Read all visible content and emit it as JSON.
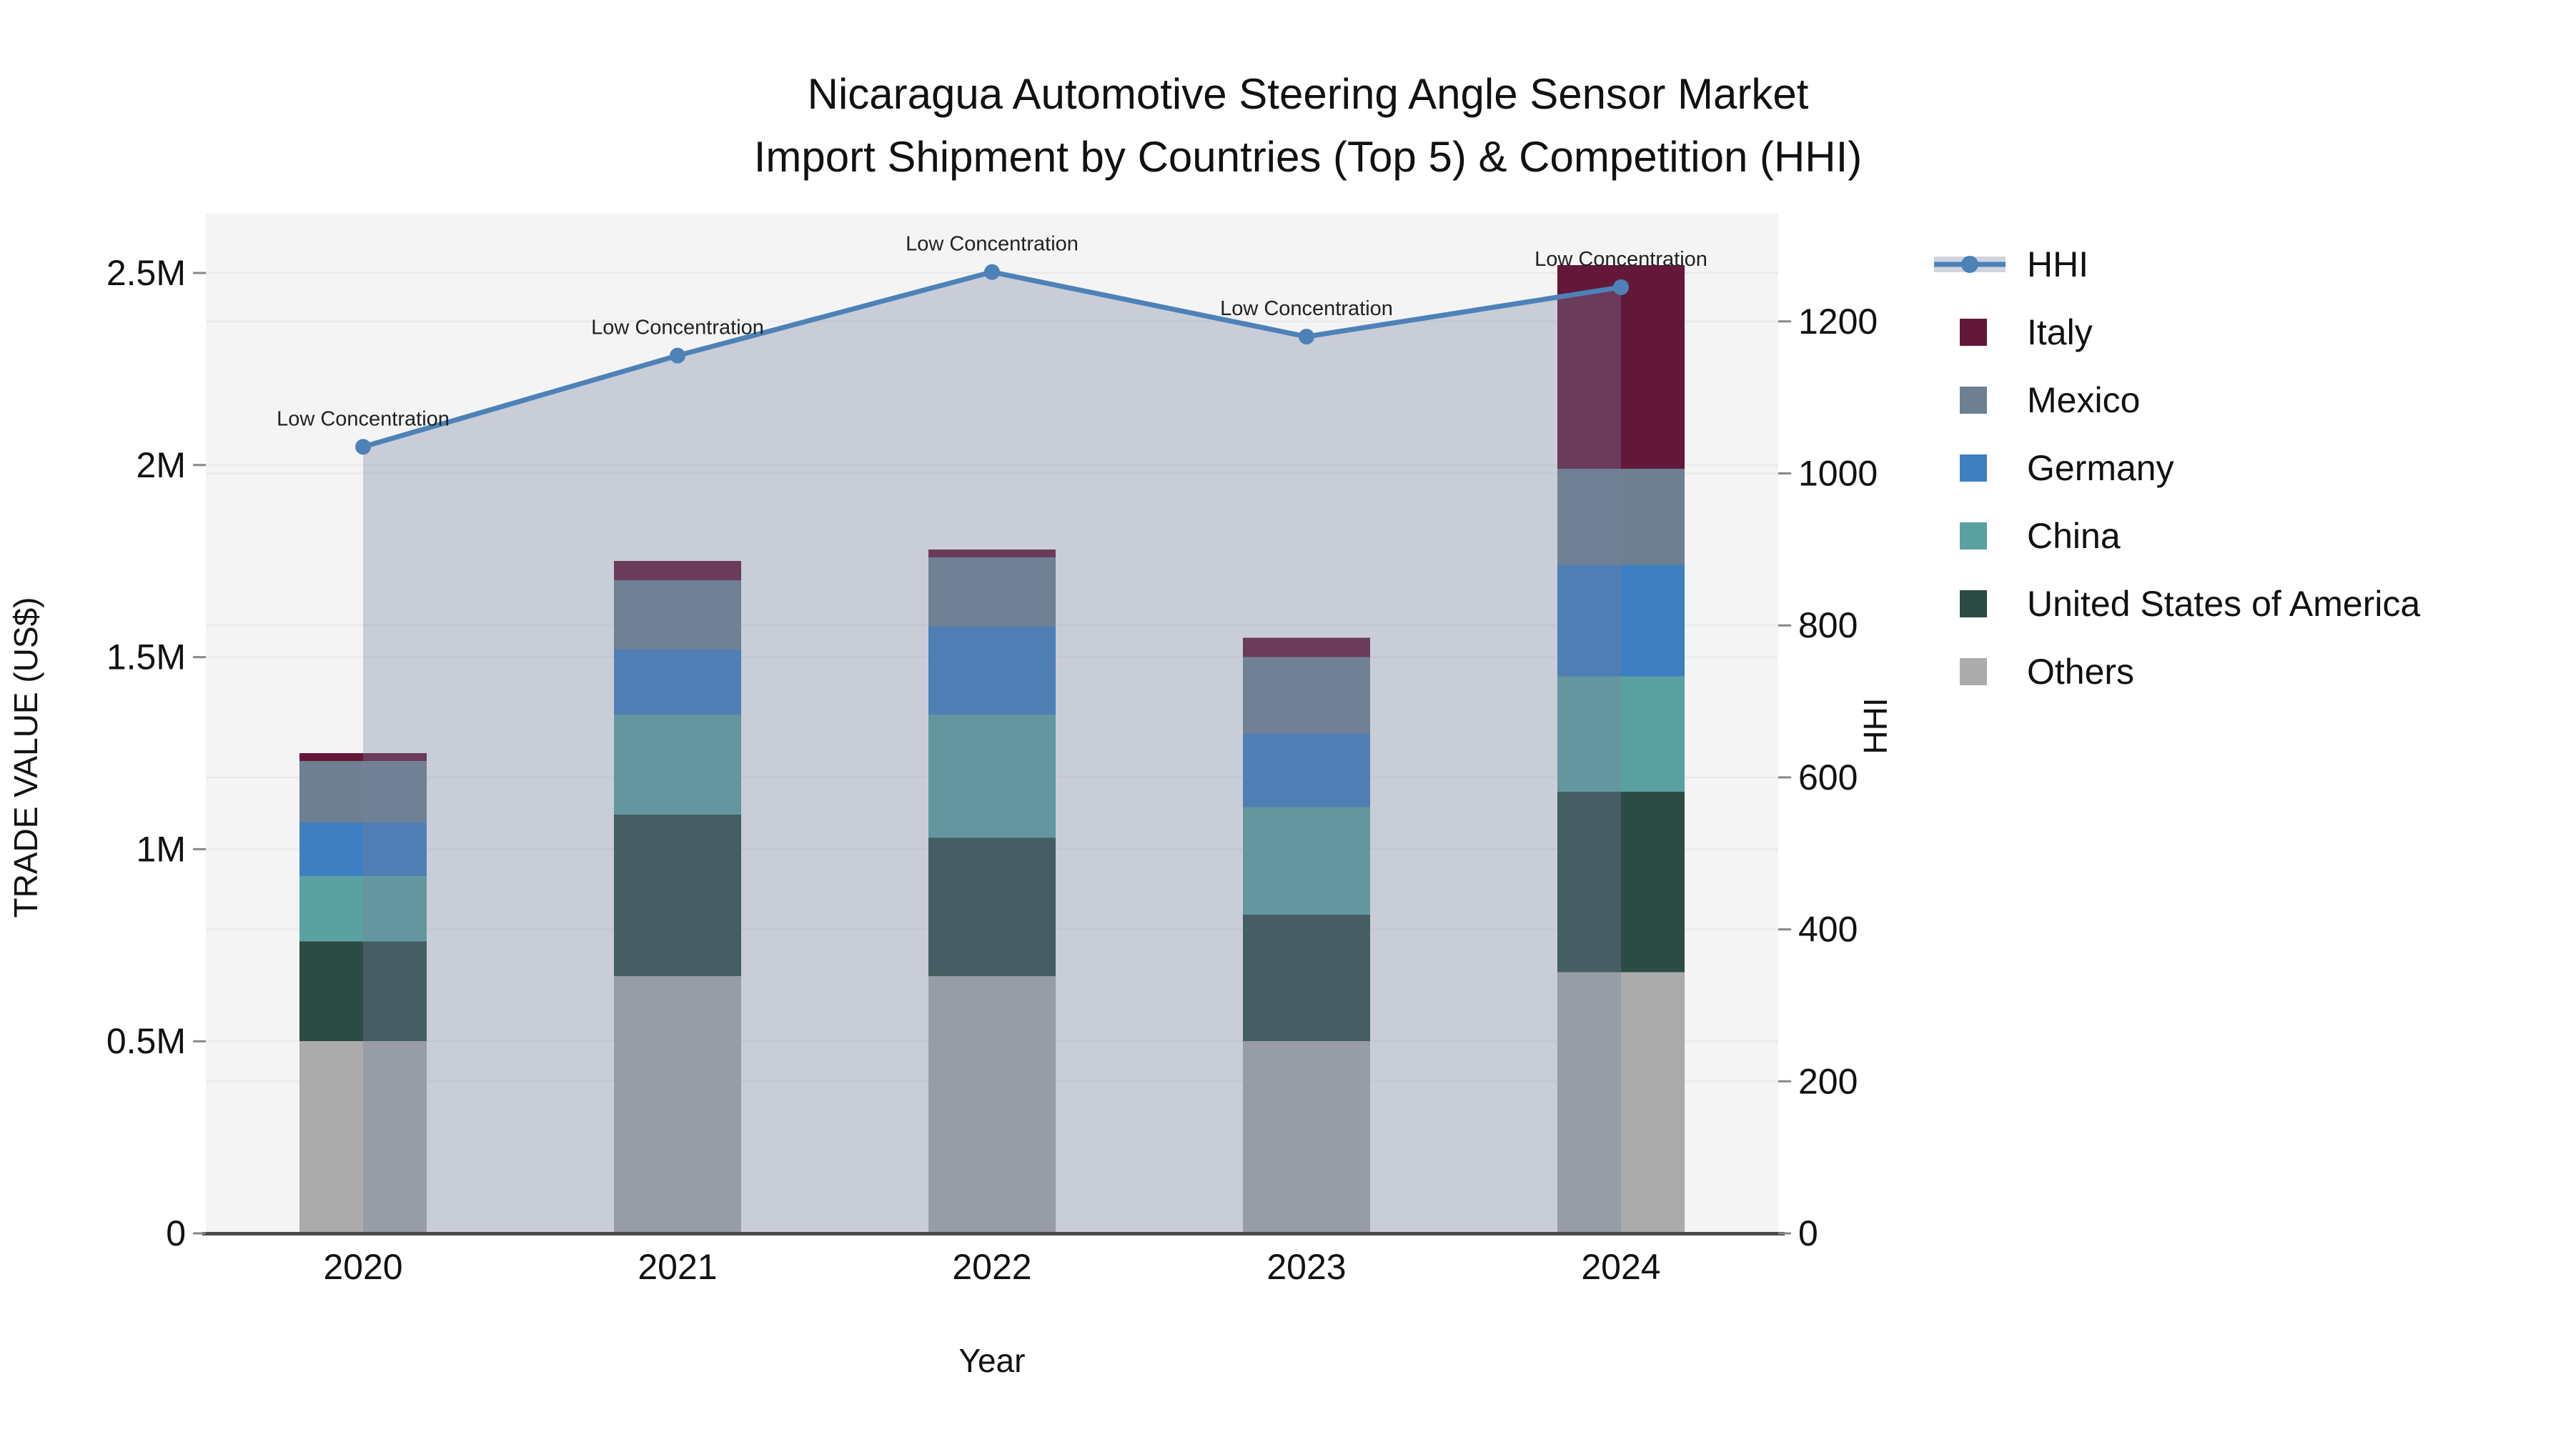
{
  "figure": {
    "title_line1": "Nicaragua Automotive Steering Angle Sensor Market",
    "title_line2": "Import Shipment by Countries (Top 5) & Competition (HHI)"
  },
  "chart_data": {
    "type": "bar",
    "subtype": "stacked-bar-with-line-and-area",
    "title": "Nicaragua Automotive Steering Angle Sensor Market Import Shipment by Countries (Top 5) & Competition (HHI)",
    "xlabel": "Year",
    "ylabel_left": "TRADE VALUE (US$)",
    "ylabel_right": "HHI",
    "categories": [
      "2020",
      "2021",
      "2022",
      "2023",
      "2024"
    ],
    "unit": "million US$",
    "series": [
      {
        "name": "Others",
        "color": "#ABABAB",
        "values": [
          0.5,
          0.67,
          0.67,
          0.5,
          0.68
        ]
      },
      {
        "name": "United States of America",
        "color": "#2C4B45",
        "values": [
          0.26,
          0.42,
          0.36,
          0.33,
          0.47
        ]
      },
      {
        "name": "China",
        "color": "#5BA1A1",
        "values": [
          0.17,
          0.26,
          0.32,
          0.28,
          0.3
        ]
      },
      {
        "name": "Germany",
        "color": "#3E7FC1",
        "values": [
          0.14,
          0.17,
          0.23,
          0.19,
          0.29
        ]
      },
      {
        "name": "Mexico",
        "color": "#6E8091",
        "values": [
          0.16,
          0.18,
          0.18,
          0.2,
          0.25
        ]
      },
      {
        "name": "Italy",
        "color": "#641839",
        "values": [
          0.02,
          0.05,
          0.02,
          0.05,
          0.53
        ]
      }
    ],
    "bar_totals": [
      1.25,
      1.75,
      1.78,
      1.55,
      2.52
    ],
    "line_series": {
      "name": "HHI",
      "color": "#4D82B8",
      "area_fill": "rgba(118,129,157,0.34)",
      "values": [
        1035,
        1155,
        1265,
        1180,
        1245
      ]
    },
    "annotations": [
      "Low Concentration",
      "Low Concentration",
      "Low Concentration",
      "Low Concentration",
      "Low Concentration"
    ],
    "axis_left": {
      "ticks": [
        "0",
        "0.5M",
        "1M",
        "1.5M",
        "2M",
        "2.5M"
      ],
      "tick_values": [
        0,
        0.5,
        1.0,
        1.5,
        2.0,
        2.5
      ],
      "range_max": 2.65
    },
    "axis_right": {
      "ticks": [
        "0",
        "200",
        "400",
        "600",
        "800",
        "1000",
        "1200"
      ],
      "tick_values": [
        0,
        200,
        400,
        600,
        800,
        1000,
        1200
      ],
      "range_max": 1342
    },
    "legend": [
      {
        "label": "HHI",
        "swatch": "line-marker",
        "color": "#4D82B8",
        "band": "#D0D4DE"
      },
      {
        "label": "Italy",
        "swatch": "square",
        "color": "#641839"
      },
      {
        "label": "Mexico",
        "swatch": "square",
        "color": "#6E8091"
      },
      {
        "label": "Germany",
        "swatch": "square",
        "color": "#3E7FC1"
      },
      {
        "label": "China",
        "swatch": "square",
        "color": "#5BA1A1"
      },
      {
        "label": "United States of America",
        "swatch": "square",
        "color": "#2C4B45"
      },
      {
        "label": "Others",
        "swatch": "square",
        "color": "#ABABAB"
      }
    ],
    "colors": {
      "plot_background": "#F4F4F5",
      "gridline": "#E9E9EC",
      "axis_line": "#4A4A4A"
    },
    "legend_position": "right",
    "grid": true
  }
}
